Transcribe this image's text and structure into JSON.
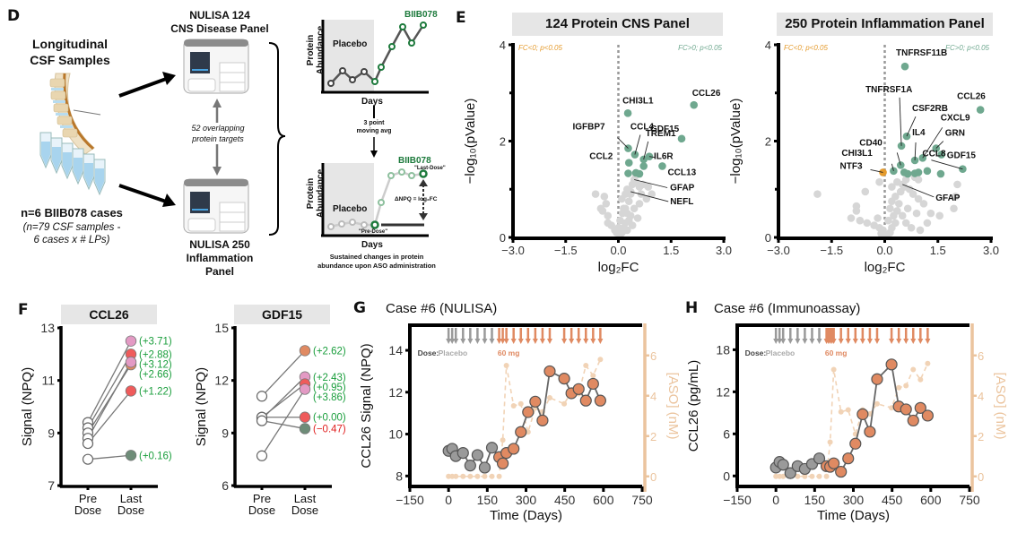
{
  "panel_labels": {
    "D": "D",
    "E": "E",
    "F": "F",
    "G": "G",
    "H": "H"
  },
  "colors": {
    "sig_up": "#6fa88f",
    "sig_down": "#e59b2d",
    "nonsig": "#d6d6d6",
    "placebo_grey": "#9a9a9a",
    "dose_orange": "#e08a62",
    "aso_axis": "#ebc49e",
    "green_text": "#1a9e3c",
    "red_text": "#e02020",
    "header_bg": "#e6e6e6",
    "biib_green": "#1d7a3c"
  },
  "panel_d": {
    "title_samples": "Longitudinal\nCSF Samples",
    "cases_main": "n=6 BIIB078 cases",
    "cases_sub": "(n=79 CSF samples -\n6 cases x # LPs)",
    "instrument_top_label": "NULISA 124\nCNS Disease Panel",
    "instrument_bottom_label": "NULISA 250\nInflammation Panel",
    "overlap_text": "52 overlapping\nprotein targets",
    "schematic": {
      "y_label": "Protein\nAbundance",
      "x_label": "Days",
      "placebo_label": "Placebo",
      "drug_label": "BIIB078",
      "transform_label": "3 point\nmoving avg",
      "pre_dose": "\"Pre-Dose\"",
      "last_dose": "\"Last-Dose\"",
      "delta_label": "ΔNPQ = log₂FC",
      "caption": "Sustained changes in protein\nabundance upon ASO administration"
    }
  },
  "chart_data": [
    {
      "id": "E-left",
      "type": "scatter",
      "title": "124 Protein CNS Panel",
      "xlabel": "log₂FC",
      "ylabel": "−log₁₀(pValue)",
      "xlim": [
        -3.0,
        3.0
      ],
      "ylim": [
        0,
        4
      ],
      "xticks": [
        "−3.0",
        "−1.5",
        "0.0",
        "1.5",
        "3.0"
      ],
      "yticks": [
        "0",
        "2",
        "4"
      ],
      "legend_left": "FC<0; p<0.05",
      "legend_right": "FC>0; p<0.05",
      "significant": [
        {
          "label": "CCL26",
          "x": 2.15,
          "y": 2.75
        },
        {
          "label": "CHI3L1",
          "x": 0.27,
          "y": 2.58
        },
        {
          "label": "GDF15",
          "x": 1.8,
          "y": 2.05
        },
        {
          "label": "IGFBP7",
          "x": 0.28,
          "y": 1.85
        },
        {
          "label": "CCL4",
          "x": 0.47,
          "y": 1.72
        },
        {
          "label": "TREM1",
          "x": 0.72,
          "y": 1.62
        },
        {
          "label": "IL6R",
          "x": 0.88,
          "y": 1.68
        },
        {
          "label": "CCL2",
          "x": 0.3,
          "y": 1.55
        },
        {
          "label": "",
          "x": 0.72,
          "y": 1.48
        },
        {
          "label": "CCL13",
          "x": 1.25,
          "y": 1.48
        },
        {
          "label": "",
          "x": 0.28,
          "y": 1.33
        },
        {
          "label": "",
          "x": 0.5,
          "y": 1.34
        },
        {
          "label": "",
          "x": 0.6,
          "y": 1.32
        }
      ],
      "annotated_nonsig": [
        {
          "label": "GFAP",
          "x": 0.45,
          "y": 1.2
        },
        {
          "label": "NEFL",
          "x": 0.35,
          "y": 0.95
        }
      ],
      "nonsig": [
        [
          -0.65,
          0.9
        ],
        [
          -0.4,
          0.85
        ],
        [
          -0.35,
          0.7
        ],
        [
          -0.5,
          0.6
        ],
        [
          -0.45,
          0.55
        ],
        [
          -0.3,
          0.45
        ],
        [
          -0.3,
          0.3
        ],
        [
          -0.2,
          0.25
        ],
        [
          -0.1,
          0.15
        ],
        [
          -0.05,
          0.1
        ],
        [
          0.05,
          0.05
        ],
        [
          0.1,
          0.1
        ],
        [
          0.15,
          0.2
        ],
        [
          0.2,
          0.3
        ],
        [
          0.25,
          0.5
        ],
        [
          0.2,
          0.6
        ],
        [
          0.3,
          0.75
        ],
        [
          0.35,
          0.9
        ],
        [
          0.25,
          1.0
        ],
        [
          0.4,
          1.1
        ],
        [
          0.5,
          1.15
        ],
        [
          0.6,
          1.05
        ],
        [
          0.7,
          1.1
        ],
        [
          0.85,
          1.05
        ],
        [
          0.95,
          0.9
        ],
        [
          0.8,
          0.8
        ],
        [
          0.6,
          0.7
        ],
        [
          0.45,
          0.6
        ],
        [
          0.35,
          0.45
        ],
        [
          0.3,
          0.35
        ],
        [
          0.55,
          0.4
        ],
        [
          0.15,
          0.6
        ],
        [
          0.1,
          0.8
        ],
        [
          0.2,
          0.9
        ],
        [
          0.05,
          0.35
        ],
        [
          0.0,
          0.2
        ],
        [
          0.12,
          0.5
        ],
        [
          0.25,
          0.15
        ],
        [
          0.4,
          0.25
        ],
        [
          0.65,
          0.9
        ],
        [
          0.5,
          1.3
        ]
      ]
    },
    {
      "id": "E-right",
      "type": "scatter",
      "title": "250 Protein Inflammation Panel",
      "xlabel": "log₂FC",
      "ylabel": "−log₁₀(pValue)",
      "xlim": [
        -3.0,
        3.0
      ],
      "ylim": [
        0,
        4
      ],
      "xticks": [
        "−3.0",
        "−1.5",
        "0.0",
        "1.5",
        "3.0"
      ],
      "yticks": [
        "0",
        "2",
        "4"
      ],
      "legend_left": "FC<0; p<0.05",
      "legend_right": "FC>0; p<0.05",
      "significant": [
        {
          "label": "TNFRSF11B",
          "x": 0.57,
          "y": 3.55
        },
        {
          "label": "CCL26",
          "x": 2.7,
          "y": 2.65
        },
        {
          "label": "CSF2RB",
          "x": 0.62,
          "y": 2.1
        },
        {
          "label": "TNFRSF1A",
          "x": 0.47,
          "y": 1.9
        },
        {
          "label": "GRN",
          "x": 1.45,
          "y": 1.85
        },
        {
          "label": "GDF15",
          "x": 1.6,
          "y": 1.72
        },
        {
          "label": "CXCL9",
          "x": 1.07,
          "y": 1.65
        },
        {
          "label": "IL4",
          "x": 0.85,
          "y": 1.6
        },
        {
          "label": "CD40",
          "x": 0.45,
          "y": 1.5
        },
        {
          "label": "CHI3L1",
          "x": 0.25,
          "y": 1.38
        },
        {
          "label": "CCL8",
          "x": 2.2,
          "y": 1.42
        },
        {
          "label": "",
          "x": 0.55,
          "y": 1.35
        },
        {
          "label": "",
          "x": 0.65,
          "y": 1.32
        },
        {
          "label": "",
          "x": 0.85,
          "y": 1.33
        },
        {
          "label": "",
          "x": 0.95,
          "y": 1.35
        },
        {
          "label": "",
          "x": 1.2,
          "y": 1.38
        },
        {
          "label": "",
          "x": 1.58,
          "y": 1.32
        }
      ],
      "significant_down": [
        {
          "label": "NTF3",
          "x": -0.05,
          "y": 1.35
        }
      ],
      "annotated_nonsig": [
        {
          "label": "GFAP",
          "x": 0.5,
          "y": 1.1
        }
      ],
      "nonsig": [
        [
          -1.9,
          0.9
        ],
        [
          -0.55,
          0.95
        ],
        [
          -0.8,
          0.65
        ],
        [
          -0.8,
          0.55
        ],
        [
          -0.95,
          0.4
        ],
        [
          -0.7,
          0.35
        ],
        [
          -0.5,
          0.3
        ],
        [
          -0.3,
          0.25
        ],
        [
          -0.15,
          0.2
        ],
        [
          -0.2,
          0.4
        ],
        [
          -0.05,
          0.15
        ],
        [
          -0.1,
          0.08
        ],
        [
          0.05,
          0.05
        ],
        [
          0.15,
          0.1
        ],
        [
          0.2,
          0.2
        ],
        [
          0.3,
          0.3
        ],
        [
          0.25,
          0.45
        ],
        [
          0.35,
          0.55
        ],
        [
          0.4,
          0.7
        ],
        [
          0.3,
          0.85
        ],
        [
          0.45,
          0.95
        ],
        [
          0.55,
          1.05
        ],
        [
          0.7,
          1.0
        ],
        [
          0.8,
          0.9
        ],
        [
          0.95,
          0.8
        ],
        [
          1.1,
          0.7
        ],
        [
          1.3,
          0.5
        ],
        [
          1.2,
          0.3
        ],
        [
          0.9,
          0.5
        ],
        [
          0.65,
          0.6
        ],
        [
          0.5,
          0.45
        ],
        [
          0.15,
          0.6
        ],
        [
          0.2,
          0.75
        ],
        [
          0.1,
          0.35
        ],
        [
          0.6,
          0.3
        ],
        [
          0.75,
          0.2
        ],
        [
          1.0,
          0.15
        ],
        [
          0.35,
          1.15
        ],
        [
          0.2,
          1.05
        ],
        [
          -0.15,
          1.15
        ],
        [
          1.95,
          0.6
        ],
        [
          2.0,
          0.85
        ],
        [
          2.05,
          1.1
        ],
        [
          1.55,
          0.45
        ],
        [
          0.95,
          1.2
        ],
        [
          0.6,
          1.2
        ],
        [
          0.85,
          1.25
        ]
      ]
    },
    {
      "id": "F-left",
      "type": "line",
      "title": "CCL26",
      "ylabel": "Signal (NPQ)",
      "categories": [
        "Pre\nDose",
        "Last\nDose"
      ],
      "ylim": [
        7,
        13
      ],
      "yticks": [
        "7",
        "9",
        "11",
        "13"
      ],
      "series": [
        {
          "pre": 9.4,
          "last": 12.5,
          "delta": "(+3.71)",
          "color": "#e39ac4",
          "delta_sign": "pos"
        },
        {
          "pre": 9.2,
          "last": 12.0,
          "delta": "(+2.88)",
          "color": "#ef5b5b",
          "delta_sign": "pos"
        },
        {
          "pre": 9.0,
          "last": 11.6,
          "delta": "(+2.66)",
          "color": "#e08a62",
          "delta_sign": "pos"
        },
        {
          "pre": 8.8,
          "last": 11.7,
          "delta": "(+3.12)",
          "color": "#e39ac4",
          "delta_sign": "pos"
        },
        {
          "pre": 8.6,
          "last": 10.6,
          "delta": "(+1.22)",
          "color": "#ef5b5b",
          "delta_sign": "pos"
        },
        {
          "pre": 8.0,
          "last": 8.15,
          "delta": "(+0.16)",
          "color": "#6e8c78",
          "delta_sign": "pos"
        }
      ],
      "delta_labels": [
        "(+3.71)",
        "(+2.88)",
        "(+3.12)",
        "(+2.66)",
        "(+1.22)",
        "(+0.16)"
      ]
    },
    {
      "id": "F-right",
      "type": "line",
      "title": "GDF15",
      "ylabel": "Signal (NPQ)",
      "categories": [
        "Pre\nDose",
        "Last\nDose"
      ],
      "ylim": [
        6,
        15
      ],
      "yticks": [
        "6",
        "9",
        "12",
        "15"
      ],
      "series": [
        {
          "pre": 11.1,
          "last": 13.7,
          "delta": "(+2.62)",
          "color": "#e08a62",
          "delta_sign": "pos"
        },
        {
          "pre": 9.8,
          "last": 12.2,
          "delta": "(+2.43)",
          "color": "#e39ac4",
          "delta_sign": "pos"
        },
        {
          "pre": 9.9,
          "last": 11.8,
          "delta": "(+0.95)",
          "color": "#ef5b5b",
          "delta_sign": "pos"
        },
        {
          "pre": 7.7,
          "last": 11.5,
          "delta": "(+3.86)",
          "color": "#e39ac4",
          "delta_sign": "pos"
        },
        {
          "pre": 9.9,
          "last": 9.9,
          "delta": "(+0.00)",
          "color": "#ef5b5b",
          "delta_sign": "pos"
        },
        {
          "pre": 9.7,
          "last": 9.25,
          "delta": "(−0.47)",
          "color": "#6e8c78",
          "delta_sign": "neg"
        }
      ],
      "delta_labels": [
        "(+2.62)",
        "(+2.43)",
        "(+0.95)",
        "(+3.86)",
        "(+0.00)",
        "(−0.47)"
      ]
    },
    {
      "id": "G",
      "type": "line",
      "title": "Case #6 (NULISA)",
      "xlabel": "Time (Days)",
      "ylabel": "CCL26 Signal (NPQ)",
      "y2label": "[ASO] (nM)",
      "xlim": [
        -150,
        750
      ],
      "ylim": [
        7.5,
        15.2
      ],
      "y2lim": [
        -0.5,
        7.5
      ],
      "xticks": [
        "−150",
        "0",
        "150",
        "300",
        "450",
        "600",
        "750"
      ],
      "yticks": [
        "8",
        "10",
        "12",
        "14"
      ],
      "y2ticks": [
        "0",
        "2",
        "4",
        "6"
      ],
      "dose_label": "Dose:",
      "placebo_label": "Placebo",
      "active_label": "60 mg",
      "placebo_doses": [
        0,
        14,
        28,
        56,
        84,
        112,
        140,
        168
      ],
      "active_doses": [
        196,
        210,
        224,
        252,
        280,
        308,
        336,
        364,
        392,
        448,
        476,
        504,
        532,
        560,
        588
      ],
      "placebo_points": [
        [
          0,
          9.2
        ],
        [
          14,
          9.3
        ],
        [
          28,
          8.95
        ],
        [
          56,
          9.1
        ],
        [
          84,
          8.5
        ],
        [
          112,
          9.0
        ],
        [
          140,
          8.4
        ],
        [
          168,
          9.35
        ]
      ],
      "active_points": [
        [
          196,
          8.9
        ],
        [
          210,
          8.6
        ],
        [
          224,
          9.1
        ],
        [
          252,
          9.3
        ],
        [
          280,
          10.1
        ],
        [
          308,
          11.05
        ],
        [
          336,
          11.55
        ],
        [
          364,
          10.65
        ],
        [
          392,
          13.0
        ],
        [
          448,
          12.65
        ],
        [
          476,
          11.95
        ],
        [
          504,
          12.15
        ],
        [
          532,
          11.6
        ],
        [
          560,
          12.4
        ],
        [
          588,
          11.6
        ]
      ],
      "aso_points": [
        [
          0,
          0
        ],
        [
          14,
          0
        ],
        [
          28,
          0
        ],
        [
          56,
          0
        ],
        [
          84,
          0
        ],
        [
          112,
          0
        ],
        [
          140,
          0
        ],
        [
          168,
          0
        ],
        [
          196,
          0
        ],
        [
          210,
          1.8
        ],
        [
          224,
          5.5
        ],
        [
          252,
          3.5
        ],
        [
          280,
          3.6
        ],
        [
          308,
          2.2
        ],
        [
          336,
          3.4
        ],
        [
          364,
          3.2
        ],
        [
          392,
          3.9
        ],
        [
          448,
          3.6
        ],
        [
          476,
          4.2
        ],
        [
          504,
          4.1
        ],
        [
          532,
          5.5
        ],
        [
          560,
          5.0
        ],
        [
          588,
          5.8
        ]
      ]
    },
    {
      "id": "H",
      "type": "line",
      "title": "Case #6 (Immunoassay)",
      "xlabel": "Time (Days)",
      "ylabel": "CCL26 (pg/mL)",
      "y2label": "[ASO] (nM)",
      "xlim": [
        -150,
        750
      ],
      "ylim": [
        -1.5,
        21.5
      ],
      "y2lim": [
        -0.5,
        7.5
      ],
      "xticks": [
        "−150",
        "0",
        "150",
        "300",
        "450",
        "600",
        "750"
      ],
      "yticks": [
        "0",
        "6",
        "12",
        "18"
      ],
      "y2ticks": [
        "0",
        "2",
        "4",
        "6"
      ],
      "dose_label": "Dose:",
      "placebo_label": "Placebo",
      "active_label": "60 mg",
      "placebo_doses": [
        0,
        14,
        28,
        56,
        84,
        112,
        140,
        168
      ],
      "active_doses": [
        196,
        203,
        210,
        217,
        224,
        252,
        280,
        308,
        336,
        364,
        392,
        448,
        476,
        504,
        532,
        560,
        588
      ],
      "placebo_points": [
        [
          0,
          1.2
        ],
        [
          14,
          2.0
        ],
        [
          28,
          1.6
        ],
        [
          56,
          0.4
        ],
        [
          84,
          1.4
        ],
        [
          112,
          1.0
        ],
        [
          140,
          1.7
        ],
        [
          168,
          2.5
        ]
      ],
      "active_points": [
        [
          196,
          1.4
        ],
        [
          210,
          1.3
        ],
        [
          224,
          1.8
        ],
        [
          252,
          0.6
        ],
        [
          280,
          2.5
        ],
        [
          308,
          4.6
        ],
        [
          336,
          8.8
        ],
        [
          364,
          6.3
        ],
        [
          392,
          13.8
        ],
        [
          448,
          15.9
        ],
        [
          476,
          9.9
        ],
        [
          504,
          9.5
        ],
        [
          532,
          7.9
        ],
        [
          560,
          9.7
        ],
        [
          588,
          8.6
        ]
      ],
      "aso_points": [
        [
          0,
          0
        ],
        [
          14,
          0
        ],
        [
          28,
          0
        ],
        [
          56,
          0
        ],
        [
          84,
          0
        ],
        [
          112,
          0
        ],
        [
          140,
          0
        ],
        [
          168,
          0
        ],
        [
          196,
          0
        ],
        [
          210,
          1.7
        ],
        [
          224,
          5.3
        ],
        [
          252,
          3.2
        ],
        [
          280,
          3.3
        ],
        [
          308,
          2.1
        ],
        [
          336,
          3.3
        ],
        [
          364,
          3.1
        ],
        [
          392,
          3.6
        ],
        [
          448,
          3.4
        ],
        [
          476,
          4.4
        ],
        [
          504,
          4.5
        ],
        [
          532,
          5.3
        ],
        [
          560,
          4.8
        ],
        [
          588,
          5.6
        ]
      ]
    }
  ]
}
